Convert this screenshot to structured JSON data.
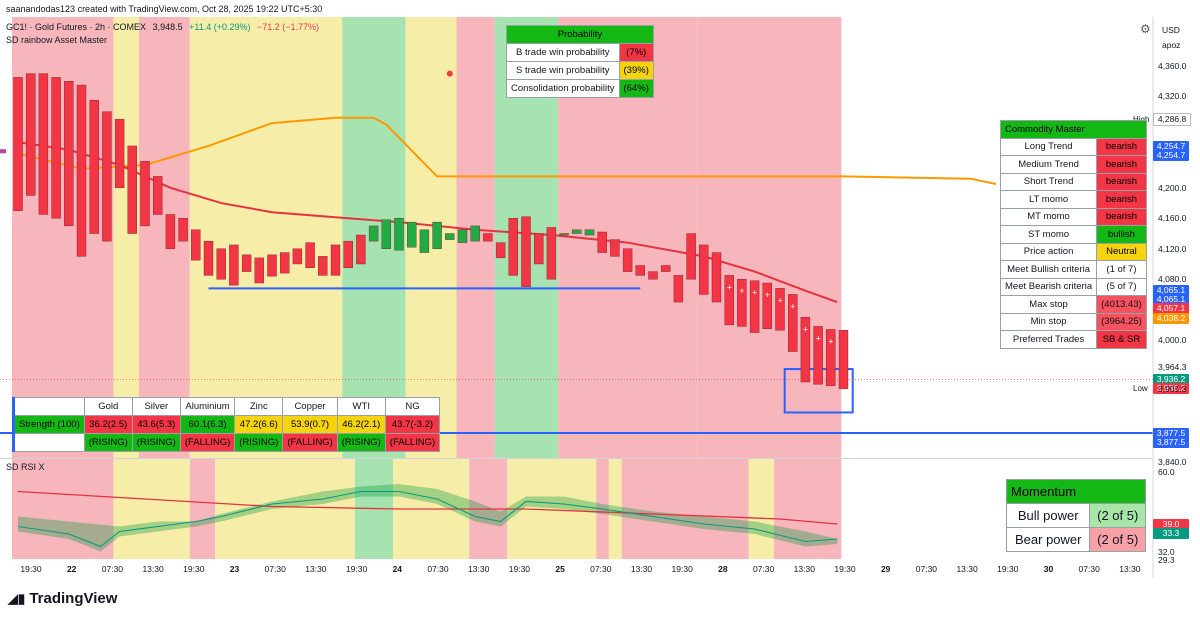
{
  "header": {
    "created_by": "saanandodas123 created with TradingView.com, Oct 28, 2025 19:22 UTC+5:30",
    "symbol_line": "GC1! · Gold Futures · 2h · COMEX",
    "last_price": "3,948.5",
    "change": "+11.4 (+0.29%)",
    "change2": "−71.2 (−1.77%)",
    "indicator_name": "SD rainbow Asset Master",
    "rsi_name": "SD RSI X"
  },
  "price_axis": {
    "currency": "USD",
    "unit": "apoz",
    "labels": [
      "4,360.0",
      "4,320.0",
      "4,240.0",
      "4,200.0",
      "4,160.0",
      "4,120.0",
      "4,080.0",
      "4,000.0",
      "3,964.3",
      "3,901.3",
      "3,840.0"
    ],
    "high_label": "High",
    "high_value": "4,286.8",
    "low_label": "Low",
    "low_value": "3,901.3",
    "tags": [
      {
        "text": "4,254.7",
        "color": "#2962ff"
      },
      {
        "text": "4,254.7",
        "color": "#2962ff"
      },
      {
        "text": "4,065.1",
        "color": "#2962ff"
      },
      {
        "text": "4,065.1",
        "color": "#2962ff"
      },
      {
        "text": "4,057.1",
        "color": "#f23645"
      },
      {
        "text": "4,038.2",
        "color": "#ff9800"
      },
      {
        "text": "3,936.2",
        "color": "#089981"
      },
      {
        "text": "3,936.2",
        "color": "#f23645"
      },
      {
        "text": "3,877.5",
        "color": "#2962ff"
      },
      {
        "text": "3,877.5",
        "color": "#2962ff"
      }
    ]
  },
  "rsi_axis": {
    "labels": [
      "60.0",
      "32.0",
      "29.3"
    ],
    "tags": [
      {
        "text": "39.0",
        "color": "#f23645"
      },
      {
        "text": "33.3",
        "color": "#089981"
      }
    ]
  },
  "time_axis": {
    "labels": [
      {
        "text": "19:30",
        "bold": false
      },
      {
        "text": "22",
        "bold": true
      },
      {
        "text": "07:30",
        "bold": false
      },
      {
        "text": "13:30",
        "bold": false
      },
      {
        "text": "19:30",
        "bold": false
      },
      {
        "text": "23",
        "bold": true
      },
      {
        "text": "07:30",
        "bold": false
      },
      {
        "text": "13:30",
        "bold": false
      },
      {
        "text": "19:30",
        "bold": false
      },
      {
        "text": "24",
        "bold": true
      },
      {
        "text": "07:30",
        "bold": false
      },
      {
        "text": "13:30",
        "bold": false
      },
      {
        "text": "19:30",
        "bold": false
      },
      {
        "text": "25",
        "bold": true
      },
      {
        "text": "07:30",
        "bold": false
      },
      {
        "text": "13:30",
        "bold": false
      },
      {
        "text": "19:30",
        "bold": false
      },
      {
        "text": "28",
        "bold": true
      },
      {
        "text": "07:30",
        "bold": false
      },
      {
        "text": "13:30",
        "bold": false
      },
      {
        "text": "19:30",
        "bold": false
      },
      {
        "text": "29",
        "bold": true
      },
      {
        "text": "07:30",
        "bold": false
      },
      {
        "text": "13:30",
        "bold": false
      },
      {
        "text": "19:30",
        "bold": false
      },
      {
        "text": "30",
        "bold": true
      },
      {
        "text": "07:30",
        "bold": false
      },
      {
        "text": "13:30",
        "bold": false
      }
    ]
  },
  "probability": {
    "title": "Probability",
    "rows": [
      {
        "label": "B trade win probability",
        "value": "(7%)",
        "color": "red"
      },
      {
        "label": "S trade win probability",
        "value": "(39%)",
        "color": "yellow"
      },
      {
        "label": "Consolidation probability",
        "value": "(64%)",
        "color": "green"
      }
    ]
  },
  "commodity_master": {
    "title": "Commodity Master",
    "rows": [
      {
        "label": "Long Trend",
        "value": "bearish",
        "color": "red"
      },
      {
        "label": "Medium Trend",
        "value": "bearish",
        "color": "red"
      },
      {
        "label": "Short Trend",
        "value": "bearish",
        "color": "red"
      },
      {
        "label": "LT momo",
        "value": "bearish",
        "color": "red"
      },
      {
        "label": "MT momo",
        "value": "bearish",
        "color": "red"
      },
      {
        "label": "ST momo",
        "value": "bullish",
        "color": "green"
      },
      {
        "label": "Price action",
        "value": "Neutral",
        "color": "yellow"
      },
      {
        "label": "Meet Bullish criteria",
        "value": "(1 of 7)",
        "color": "white"
      },
      {
        "label": "Meet Bearish criteria",
        "value": "(5 of 7)",
        "color": "white"
      },
      {
        "label": "Max stop",
        "value": "(4013.43)",
        "color": "redtxt"
      },
      {
        "label": "Min stop",
        "value": "(3964.25)",
        "color": "redtxt"
      },
      {
        "label": "Preferred Trades",
        "value": "SB & SR",
        "color": "red"
      }
    ]
  },
  "strength_table": {
    "headers": [
      "Gold",
      "Silver",
      "Aluminium",
      "Zinc",
      "Copper",
      "WTI",
      "NG"
    ],
    "row_label": "Strength (100)",
    "values": [
      {
        "text": "36.2(2.5)",
        "color": "red"
      },
      {
        "text": "43.6(5.3)",
        "color": "red"
      },
      {
        "text": "60.1(6.3)",
        "color": "green"
      },
      {
        "text": "47.2(6.6)",
        "color": "yellow"
      },
      {
        "text": "53.9(0.7)",
        "color": "yellow"
      },
      {
        "text": "46.2(2.1)",
        "color": "yellow"
      },
      {
        "text": "43.7(-3.2)",
        "color": "red"
      }
    ],
    "status": [
      {
        "text": "(RISING)",
        "color": "green"
      },
      {
        "text": "(RISING)",
        "color": "green"
      },
      {
        "text": "(FALLING)",
        "color": "red"
      },
      {
        "text": "(RISING)",
        "color": "green"
      },
      {
        "text": "(FALLING)",
        "color": "red"
      },
      {
        "text": "(RISING)",
        "color": "green"
      },
      {
        "text": "(FALLING)",
        "color": "red"
      }
    ]
  },
  "momentum": {
    "title": "Momentum",
    "rows": [
      {
        "label": "Bull power",
        "value": "(2 of 5)",
        "color": "#a8e6a8"
      },
      {
        "label": "Bear power",
        "value": "(2 of 5)",
        "color": "#f7a0a6"
      }
    ]
  },
  "colors": {
    "bull": "#22aa44",
    "bear": "#f23645",
    "zone_red": "#f7b6bb",
    "zone_yellow": "#f6eea8",
    "zone_green": "#a7e3b0",
    "ema_orange": "#ff9800",
    "ema_red": "#e5323f",
    "support_blue": "#2962ff"
  },
  "logo": {
    "text": "TradingView"
  }
}
